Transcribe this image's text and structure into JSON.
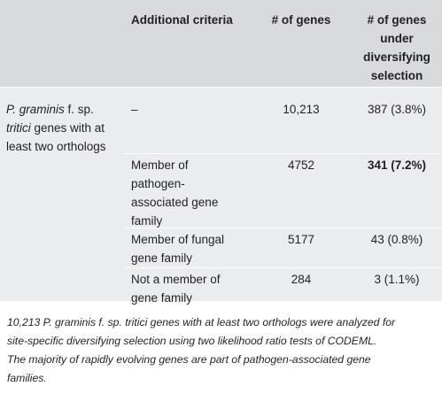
{
  "table": {
    "headers": {
      "criteria": "Additional criteria",
      "genes": "# of genes",
      "diversifying_line1": "# of genes",
      "diversifying_line2": "under",
      "diversifying_line3": "diversifying",
      "diversifying_line4": "selection"
    },
    "row_label": {
      "line1_italic": "P. graminis",
      "line1_rest": " f. sp.",
      "line2_italic": "tritici",
      "line2_rest": " genes with at",
      "line3": "least two orthologs"
    },
    "rows": [
      {
        "criteria_lines": [
          "–"
        ],
        "genes": "10,213",
        "diversifying": "387 (3.8%)"
      },
      {
        "criteria_lines": [
          "Member of",
          "pathogen-",
          "associated gene",
          "family"
        ],
        "genes": "4752",
        "diversifying": "341 (7.2%)"
      },
      {
        "criteria_lines": [
          "Member of fungal",
          "gene family"
        ],
        "genes": "5177",
        "diversifying": "43 (0.8%)"
      },
      {
        "criteria_lines": [
          "Not a member of",
          "gene family"
        ],
        "genes": "284",
        "diversifying": "3 (1.1%)"
      }
    ]
  },
  "footnote": {
    "line1": "10,213 P. graminis f. sp. tritici genes with at least two orthologs were analyzed for",
    "line2": "site-specific diversifying selection using two likelihood ratio tests of CODEML.",
    "line3": "The majority of rapidly evolving genes are part of pathogen-associated gene",
    "line4": "families."
  }
}
